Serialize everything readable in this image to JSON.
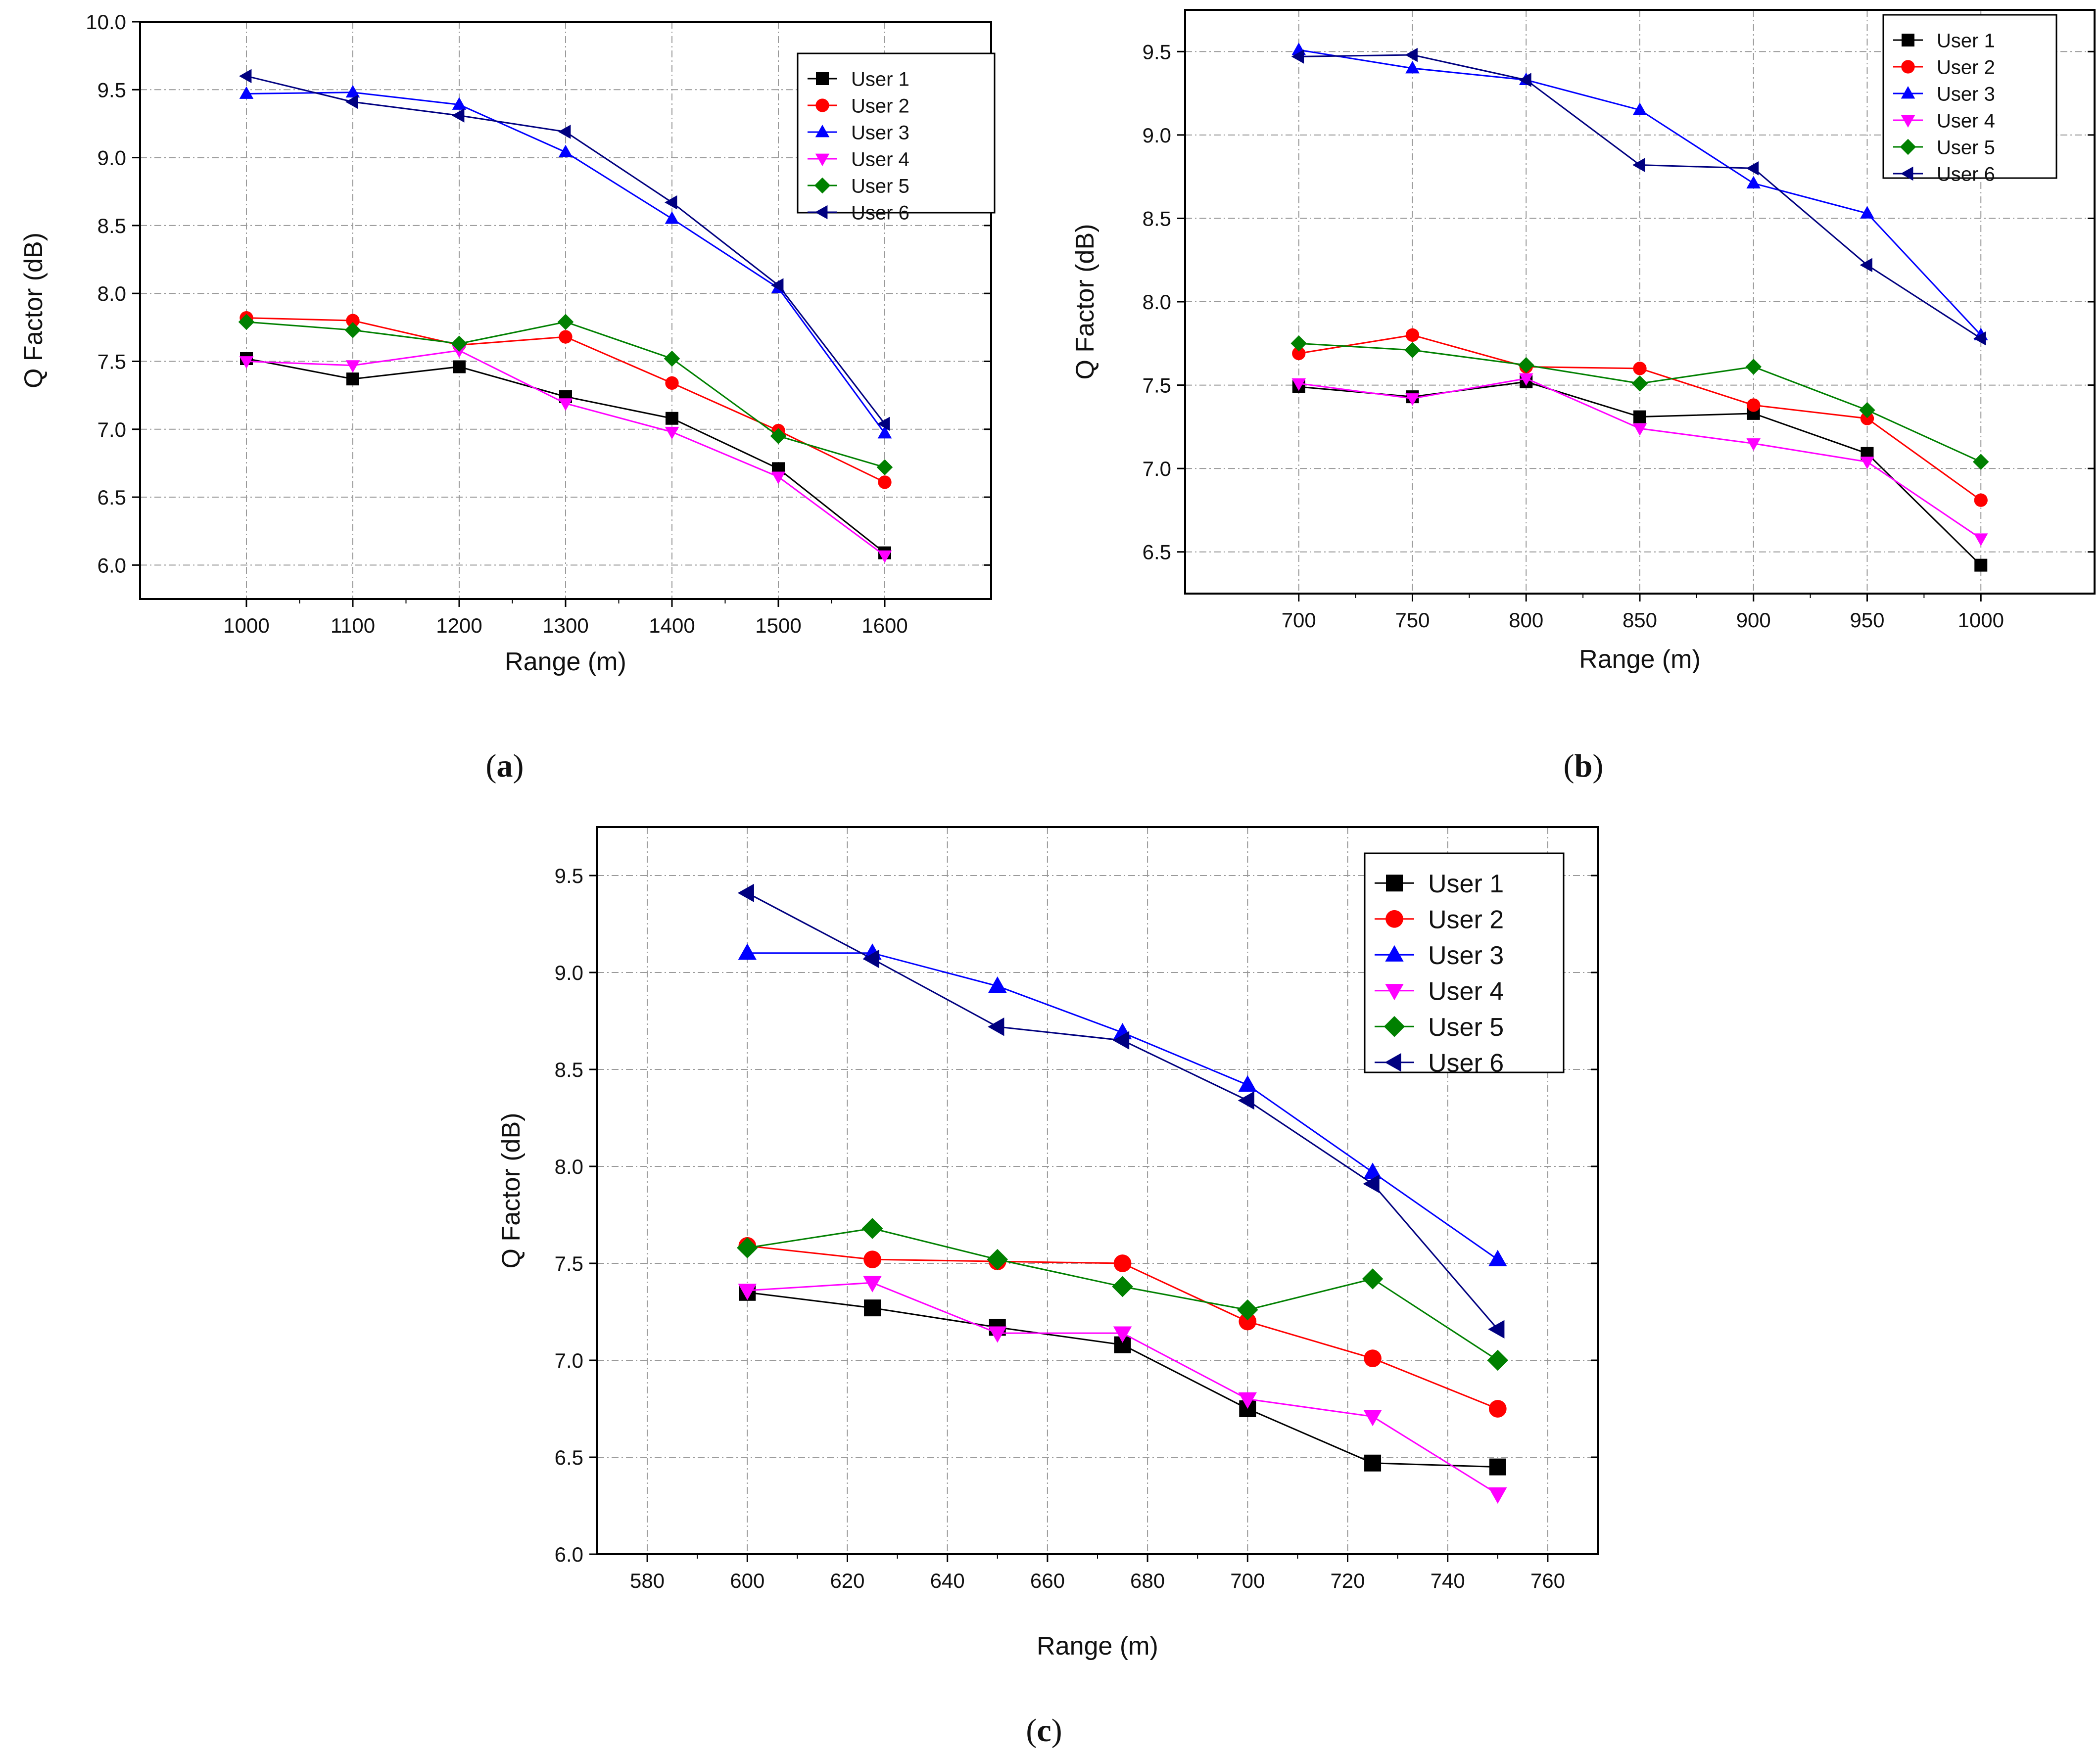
{
  "chart_data": [
    {
      "id": "a",
      "type": "line",
      "caption": "a",
      "xlabel": "Range (m)",
      "ylabel": "Q Factor (dB)",
      "xlim": [
        900,
        1700
      ],
      "ylim": [
        5.75,
        10.0
      ],
      "xticks": [
        1000,
        1100,
        1200,
        1300,
        1400,
        1500,
        1600
      ],
      "yticks": [
        6.0,
        6.5,
        7.0,
        7.5,
        8.0,
        8.5,
        9.0,
        9.5,
        10.0
      ],
      "legend_position": "top-right",
      "x": [
        1000,
        1100,
        1200,
        1300,
        1400,
        1500,
        1600
      ],
      "series": [
        {
          "name": "User 1",
          "values": [
            7.52,
            7.37,
            7.46,
            7.24,
            7.08,
            6.71,
            6.09
          ]
        },
        {
          "name": "User 2",
          "values": [
            7.82,
            7.8,
            7.62,
            7.68,
            7.34,
            6.99,
            6.61
          ]
        },
        {
          "name": "User 3",
          "values": [
            9.47,
            9.48,
            9.39,
            9.04,
            8.55,
            8.04,
            6.97
          ]
        },
        {
          "name": "User 4",
          "values": [
            7.5,
            7.47,
            7.58,
            7.19,
            6.98,
            6.65,
            6.07
          ]
        },
        {
          "name": "User 5",
          "values": [
            7.79,
            7.73,
            7.63,
            7.79,
            7.52,
            6.95,
            6.72
          ]
        },
        {
          "name": "User 6",
          "values": [
            9.6,
            9.41,
            9.31,
            9.19,
            8.67,
            8.06,
            7.04
          ]
        }
      ]
    },
    {
      "id": "b",
      "type": "line",
      "caption": "b",
      "xlabel": "Range (m)",
      "ylabel": "Q Factor (dB)",
      "xlim": [
        650,
        1050
      ],
      "ylim": [
        6.25,
        9.75
      ],
      "xticks": [
        700,
        750,
        800,
        850,
        900,
        950,
        1000
      ],
      "yticks": [
        6.5,
        7.0,
        7.5,
        8.0,
        8.5,
        9.0,
        9.5
      ],
      "legend_position": "top-right",
      "x": [
        700,
        750,
        800,
        850,
        900,
        950,
        1000
      ],
      "series": [
        {
          "name": "User 1",
          "values": [
            7.49,
            7.43,
            7.52,
            7.31,
            7.33,
            7.09,
            6.42
          ]
        },
        {
          "name": "User 2",
          "values": [
            7.69,
            7.8,
            7.61,
            7.6,
            7.38,
            7.3,
            6.81
          ]
        },
        {
          "name": "User 3",
          "values": [
            9.51,
            9.4,
            9.33,
            9.15,
            8.71,
            8.53,
            7.8
          ]
        },
        {
          "name": "User 4",
          "values": [
            7.51,
            7.42,
            7.54,
            7.24,
            7.15,
            7.04,
            6.58
          ]
        },
        {
          "name": "User 5",
          "values": [
            7.75,
            7.71,
            7.62,
            7.51,
            7.61,
            7.35,
            7.04
          ]
        },
        {
          "name": "User 6",
          "values": [
            9.47,
            9.48,
            9.33,
            8.82,
            8.8,
            8.22,
            7.78
          ]
        }
      ]
    },
    {
      "id": "c",
      "type": "line",
      "caption": "c",
      "xlabel": "Range (m)",
      "ylabel": "Q Factor (dB)",
      "xlim": [
        570,
        770
      ],
      "ylim": [
        6.0,
        9.75
      ],
      "xticks": [
        580,
        600,
        620,
        640,
        660,
        680,
        700,
        720,
        740,
        760
      ],
      "yticks": [
        6.0,
        6.5,
        7.0,
        7.5,
        8.0,
        8.5,
        9.0,
        9.5
      ],
      "legend_position": "top-right",
      "x": [
        600,
        625,
        650,
        675,
        700,
        725,
        750
      ],
      "series": [
        {
          "name": "User 1",
          "values": [
            7.35,
            7.27,
            7.17,
            7.08,
            6.75,
            6.47,
            6.45
          ]
        },
        {
          "name": "User 2",
          "values": [
            7.59,
            7.52,
            7.51,
            7.5,
            7.2,
            7.01,
            6.75
          ]
        },
        {
          "name": "User 3",
          "values": [
            9.1,
            9.1,
            8.93,
            8.69,
            8.42,
            7.97,
            7.52
          ]
        },
        {
          "name": "User 4",
          "values": [
            7.36,
            7.4,
            7.14,
            7.14,
            6.8,
            6.71,
            6.31
          ]
        },
        {
          "name": "User 5",
          "values": [
            7.58,
            7.68,
            7.52,
            7.38,
            7.26,
            7.42,
            7.0
          ]
        },
        {
          "name": "User 6",
          "values": [
            9.41,
            9.07,
            8.72,
            8.65,
            8.34,
            7.91,
            7.16
          ]
        }
      ]
    }
  ],
  "series_styles": [
    {
      "color": "#000000",
      "marker": "square"
    },
    {
      "color": "#ff0000",
      "marker": "circle"
    },
    {
      "color": "#0000ff",
      "marker": "triangle-up"
    },
    {
      "color": "#ff00ff",
      "marker": "triangle-down"
    },
    {
      "color": "#008000",
      "marker": "diamond"
    },
    {
      "color": "#000080",
      "marker": "triangle-left"
    }
  ]
}
